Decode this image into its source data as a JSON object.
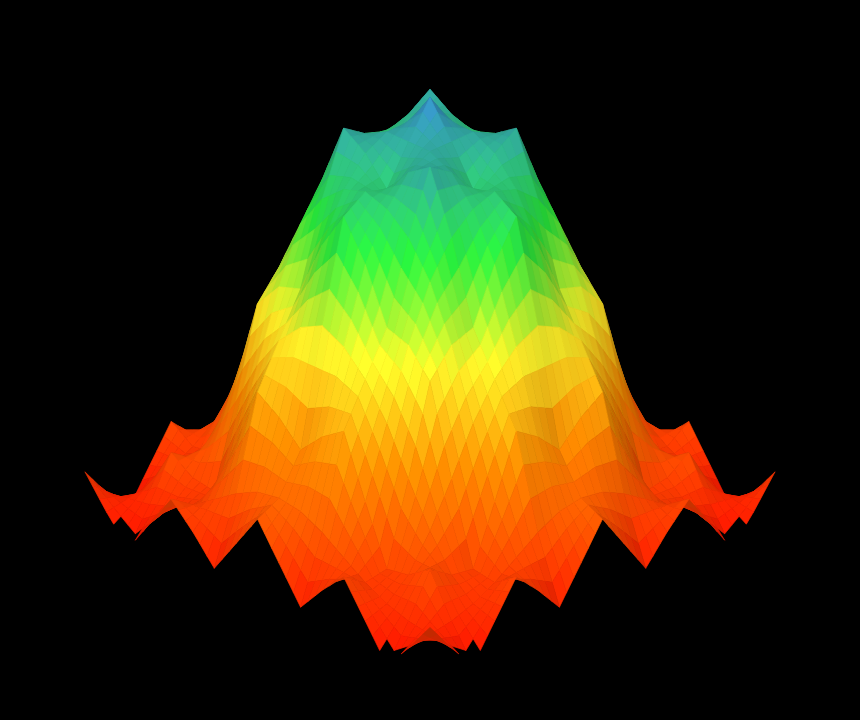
{
  "chart_data": {
    "type": "surface",
    "x": [
      -8,
      -7,
      -6,
      -5,
      -4,
      -3,
      -2,
      -1,
      0,
      1,
      2,
      3,
      4,
      5,
      6,
      7,
      8
    ],
    "y": [
      -8,
      -7,
      -6,
      -5,
      -4,
      -3,
      -2,
      -1,
      0,
      1,
      2,
      3,
      4,
      5,
      6,
      7,
      8
    ],
    "xlim": [
      -8,
      8
    ],
    "ylim": [
      -8,
      8
    ],
    "zlim": [
      0,
      1.1
    ],
    "z": [
      [
        0.1,
        0.02,
        -0.05,
        0.04,
        0.13,
        0.07,
        0.0,
        0.09,
        0.18,
        0.09,
        0.0,
        0.07,
        0.13,
        0.04,
        -0.05,
        0.02,
        0.1
      ],
      [
        0.02,
        0.03,
        0.04,
        0.06,
        0.09,
        0.13,
        0.17,
        0.2,
        0.21,
        0.2,
        0.17,
        0.13,
        0.09,
        0.06,
        0.04,
        0.03,
        0.02
      ],
      [
        -0.05,
        0.04,
        0.15,
        0.11,
        0.1,
        0.25,
        0.41,
        0.37,
        0.31,
        0.37,
        0.41,
        0.25,
        0.1,
        0.11,
        0.15,
        0.04,
        -0.05
      ],
      [
        0.04,
        0.06,
        0.11,
        0.2,
        0.31,
        0.43,
        0.52,
        0.58,
        0.61,
        0.58,
        0.52,
        0.43,
        0.31,
        0.2,
        0.11,
        0.06,
        0.04
      ],
      [
        0.13,
        0.09,
        0.1,
        0.31,
        0.54,
        0.61,
        0.63,
        0.77,
        0.87,
        0.77,
        0.63,
        0.61,
        0.54,
        0.31,
        0.1,
        0.09,
        0.13
      ],
      [
        0.07,
        0.13,
        0.25,
        0.43,
        0.61,
        0.75,
        0.84,
        0.89,
        0.91,
        0.89,
        0.84,
        0.75,
        0.61,
        0.43,
        0.25,
        0.13,
        0.07
      ],
      [
        0.0,
        0.17,
        0.41,
        0.52,
        0.63,
        0.84,
        1.0,
        0.96,
        0.89,
        0.96,
        1.0,
        0.84,
        0.63,
        0.52,
        0.41,
        0.17,
        0.0
      ],
      [
        0.09,
        0.2,
        0.37,
        0.58,
        0.77,
        0.89,
        0.96,
        0.99,
        0.99,
        0.99,
        0.96,
        0.89,
        0.77,
        0.58,
        0.37,
        0.2,
        0.09
      ],
      [
        0.18,
        0.21,
        0.31,
        0.61,
        0.87,
        0.91,
        0.89,
        0.99,
        1.08,
        0.99,
        0.89,
        0.91,
        0.87,
        0.61,
        0.31,
        0.21,
        0.18
      ],
      [
        0.09,
        0.2,
        0.37,
        0.58,
        0.77,
        0.89,
        0.96,
        0.99,
        0.99,
        0.99,
        0.96,
        0.89,
        0.77,
        0.58,
        0.37,
        0.2,
        0.09
      ],
      [
        0.0,
        0.17,
        0.41,
        0.52,
        0.63,
        0.84,
        1.0,
        0.96,
        0.89,
        0.96,
        1.0,
        0.84,
        0.63,
        0.52,
        0.41,
        0.17,
        0.0
      ],
      [
        0.07,
        0.13,
        0.25,
        0.43,
        0.61,
        0.75,
        0.84,
        0.89,
        0.91,
        0.89,
        0.84,
        0.75,
        0.61,
        0.43,
        0.25,
        0.13,
        0.07
      ],
      [
        0.13,
        0.09,
        0.1,
        0.31,
        0.54,
        0.61,
        0.63,
        0.77,
        0.87,
        0.77,
        0.63,
        0.61,
        0.54,
        0.31,
        0.1,
        0.09,
        0.13
      ],
      [
        0.04,
        0.06,
        0.11,
        0.2,
        0.31,
        0.43,
        0.52,
        0.58,
        0.61,
        0.58,
        0.52,
        0.43,
        0.31,
        0.2,
        0.11,
        0.06,
        0.04
      ],
      [
        -0.05,
        0.04,
        0.15,
        0.11,
        0.1,
        0.25,
        0.41,
        0.37,
        0.31,
        0.37,
        0.41,
        0.25,
        0.1,
        0.11,
        0.15,
        0.04,
        -0.05
      ],
      [
        0.02,
        0.03,
        0.04,
        0.06,
        0.09,
        0.13,
        0.17,
        0.2,
        0.21,
        0.2,
        0.17,
        0.13,
        0.09,
        0.06,
        0.04,
        0.03,
        0.02
      ],
      [
        0.1,
        0.02,
        -0.05,
        0.04,
        0.13,
        0.07,
        0.0,
        0.09,
        0.18,
        0.09,
        0.0,
        0.07,
        0.13,
        0.04,
        -0.05,
        0.02,
        0.1
      ]
    ]
  }
}
